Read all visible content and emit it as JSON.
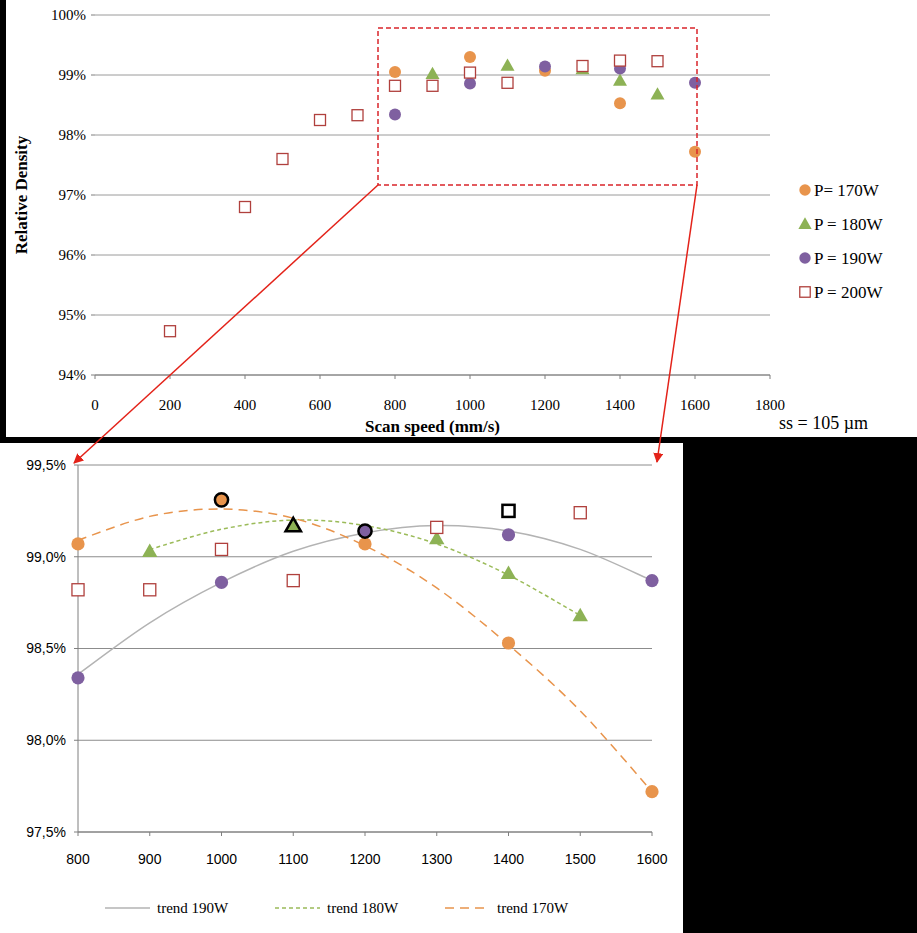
{
  "chart_data": [
    {
      "type": "scatter",
      "xlabel": "Scan speed (mm/s)",
      "ylabel": "Relative Density",
      "annotation": "ss = 105 µm",
      "xlim": [
        0,
        1800
      ],
      "xticks": [
        0,
        200,
        400,
        600,
        800,
        1000,
        1200,
        1400,
        1600,
        1800
      ],
      "ylim": [
        94,
        100
      ],
      "yticks": [
        {
          "value": 94,
          "label": "94%"
        },
        {
          "value": 95,
          "label": "95%"
        },
        {
          "value": 96,
          "label": "96%"
        },
        {
          "value": 97,
          "label": "97%"
        },
        {
          "value": 98,
          "label": "98%"
        },
        {
          "value": 99,
          "label": "99%"
        },
        {
          "value": 100,
          "label": "100%"
        }
      ],
      "grid": true,
      "legend": "right",
      "series": [
        {
          "name": "P= 170W",
          "color": "#e8944c",
          "marker": "circle",
          "x": [
            800,
            1000,
            1200,
            1400,
            1600
          ],
          "values": [
            99.05,
            99.3,
            99.07,
            98.53,
            97.72
          ]
        },
        {
          "name": "P = 180W",
          "color": "#8db255",
          "marker": "triangle",
          "x": [
            900,
            1100,
            1300,
            1400,
            1500
          ],
          "values": [
            99.02,
            99.16,
            99.1,
            98.91,
            98.68
          ]
        },
        {
          "name": "P = 190W",
          "color": "#7f60a0",
          "marker": "circle",
          "x": [
            800,
            1000,
            1200,
            1400,
            1600
          ],
          "values": [
            98.34,
            98.86,
            99.14,
            99.11,
            98.87
          ]
        },
        {
          "name": "P = 200W",
          "color": "#b0403d",
          "marker": "open-square",
          "x": [
            200,
            400,
            500,
            600,
            700,
            800,
            900,
            1000,
            1100,
            1300,
            1400,
            1500
          ],
          "values": [
            94.73,
            96.8,
            97.6,
            98.25,
            98.33,
            98.82,
            98.82,
            99.04,
            98.87,
            99.15,
            99.24,
            99.23
          ]
        }
      ]
    },
    {
      "type": "scatter",
      "xlim": [
        800,
        1600
      ],
      "xticks": [
        800,
        900,
        1000,
        1100,
        1200,
        1300,
        1400,
        1500,
        1600
      ],
      "ylim": [
        97.5,
        99.5
      ],
      "yticks": [
        {
          "value": 97.5,
          "label": "97,5%"
        },
        {
          "value": 98,
          "label": "98,0%"
        },
        {
          "value": 98.5,
          "label": "98,5%"
        },
        {
          "value": 99,
          "label": "99,0%"
        },
        {
          "value": 99.5,
          "label": "99,5%"
        }
      ],
      "grid": true,
      "legend": "bottom",
      "series": [
        {
          "color": "#e8944c",
          "marker": "circle",
          "x": [
            800,
            1000,
            1200,
            1400,
            1600
          ],
          "values": [
            99.07,
            99.31,
            99.07,
            98.53,
            97.72
          ],
          "highlight_x": 1000
        },
        {
          "color": "#8db255",
          "marker": "triangle",
          "x": [
            900,
            1100,
            1300,
            1400,
            1500
          ],
          "values": [
            99.03,
            99.17,
            99.1,
            98.91,
            98.68
          ],
          "highlight_x": 1100
        },
        {
          "color": "#7f60a0",
          "marker": "circle",
          "x": [
            800,
            1000,
            1200,
            1400,
            1600
          ],
          "values": [
            98.34,
            98.86,
            99.14,
            99.12,
            98.87
          ],
          "highlight_x": 1200
        },
        {
          "color": "#b0403d",
          "marker": "open-square",
          "x": [
            800,
            900,
            1000,
            1100,
            1300,
            1400,
            1500
          ],
          "values": [
            98.82,
            98.82,
            99.04,
            98.87,
            99.16,
            99.25,
            99.24
          ],
          "highlight_x": 1400
        },
        {
          "name": "trend 190W",
          "type": "line",
          "color": "#b3b3b3",
          "line_style": "solid",
          "x": [
            800,
            900,
            1000,
            1100,
            1200,
            1300,
            1400,
            1500,
            1600
          ],
          "values": [
            98.36,
            98.64,
            98.86,
            99.03,
            99.13,
            99.17,
            99.14,
            99.04,
            98.87
          ]
        },
        {
          "name": "trend 180W",
          "type": "line",
          "color": "#9bbb59",
          "line_style": "dashed",
          "x": [
            900,
            1000,
            1100,
            1200,
            1300,
            1400,
            1500
          ],
          "values": [
            99.04,
            99.15,
            99.2,
            99.17,
            99.07,
            98.9,
            98.68
          ]
        },
        {
          "name": "trend 170W",
          "type": "line",
          "color": "#e8944c",
          "line_style": "long-dashed",
          "x": [
            800,
            900,
            1000,
            1100,
            1200,
            1300,
            1400,
            1500,
            1600
          ],
          "values": [
            99.09,
            99.22,
            99.26,
            99.21,
            99.06,
            98.83,
            98.52,
            98.16,
            97.72
          ]
        }
      ]
    }
  ]
}
